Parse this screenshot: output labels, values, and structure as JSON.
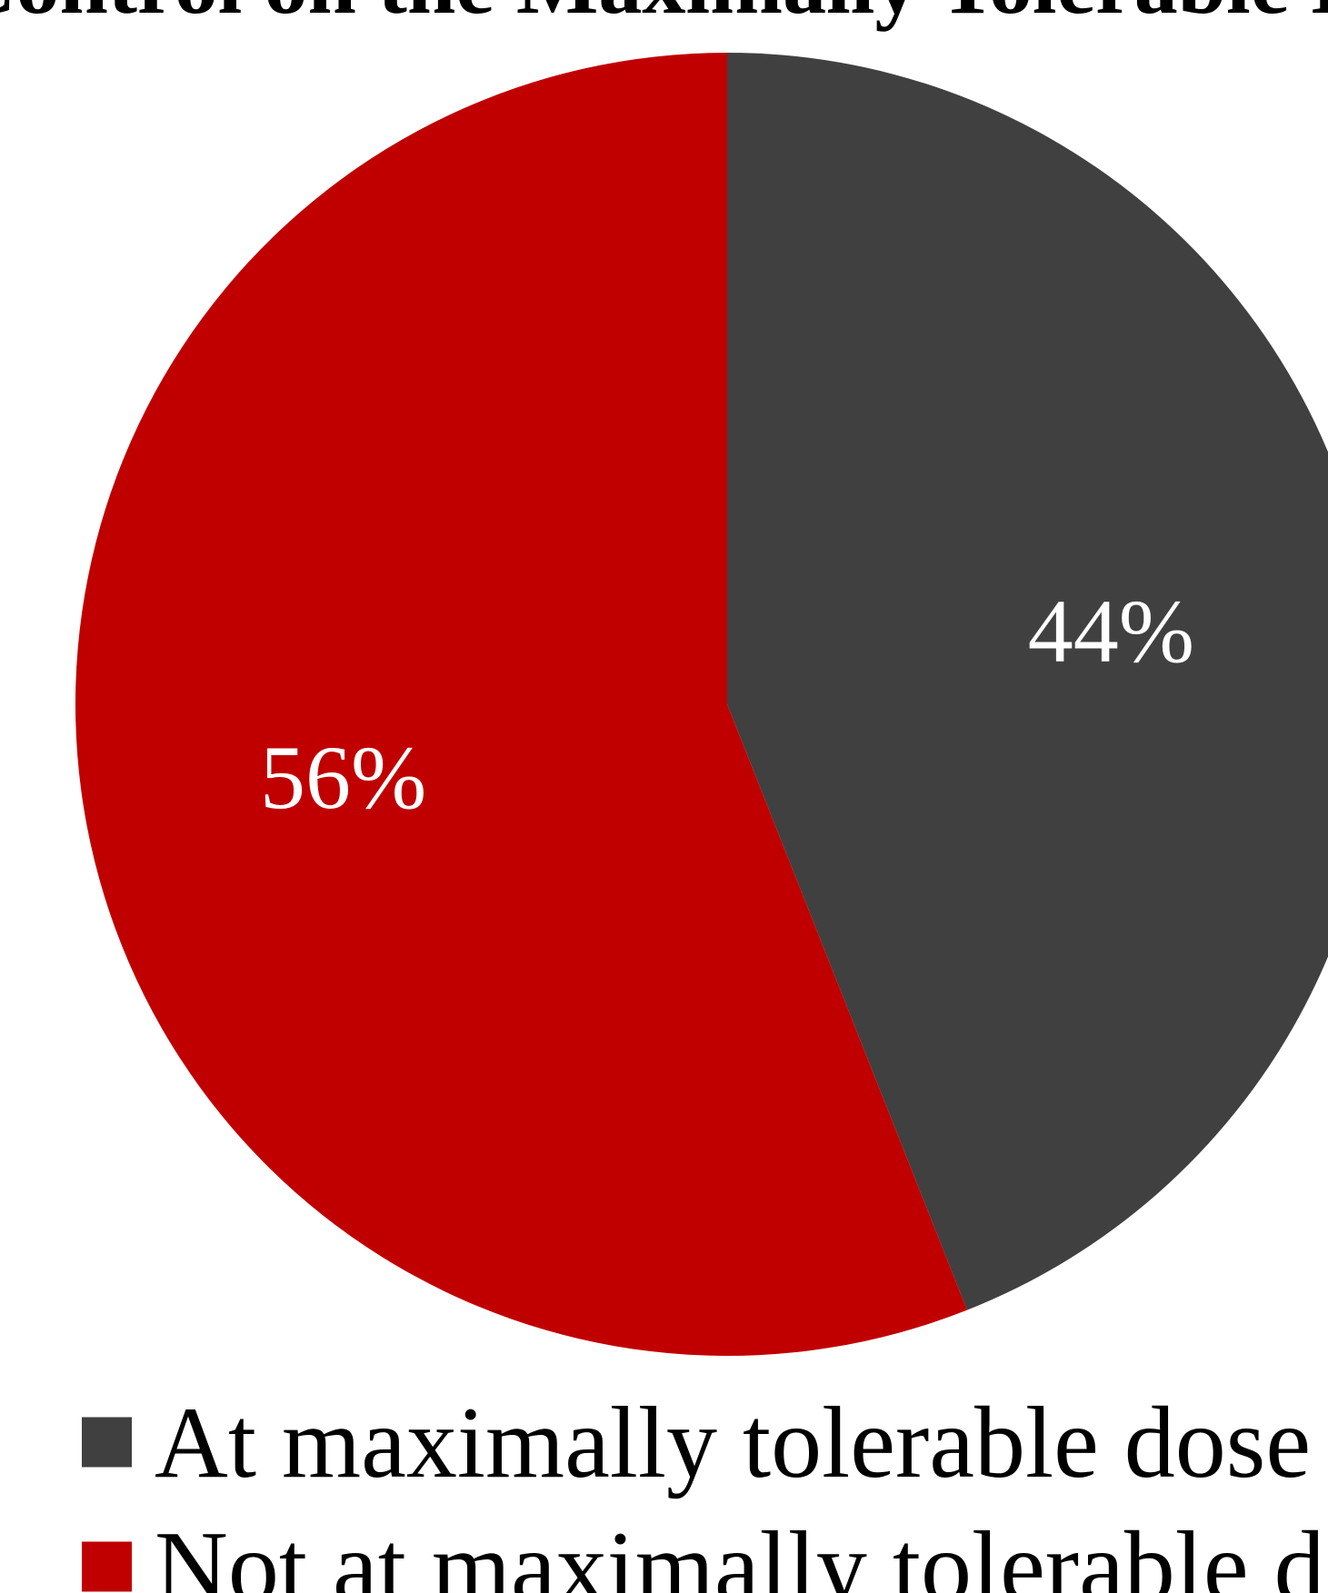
{
  "chart_data": {
    "type": "pie",
    "title": "Control on the Maximally Tolerable D",
    "slices": [
      {
        "name": "At maximally tolerable dose",
        "value": 44,
        "label": "44%",
        "color": "#404040"
      },
      {
        "name": "Not at maximally tolerable dose",
        "value": 56,
        "label": "56%",
        "color": "#c00000"
      }
    ],
    "start_angle_deg": 0,
    "direction": "clockwise",
    "legend_position": "bottom-left"
  }
}
